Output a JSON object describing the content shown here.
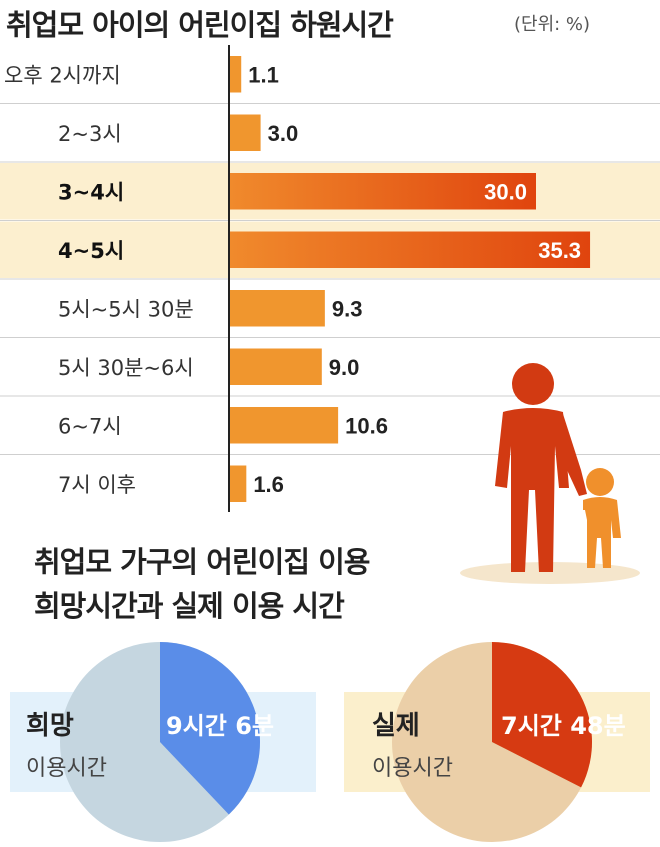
{
  "header": {
    "title": "취업모 아이의 어린이집 하원시간",
    "unit": "(단위: %)"
  },
  "chart_data": [
    {
      "type": "bar",
      "orientation": "horizontal",
      "title": "취업모 아이의 어린이집 하원시간",
      "unit": "(단위: %)",
      "categories": [
        "오후 2시까지",
        "2~3시",
        "3~4시",
        "4~5시",
        "5시~5시 30분",
        "5시 30분~6시",
        "6~7시",
        "7시 이후"
      ],
      "values": [
        1.1,
        3.0,
        30.0,
        35.3,
        9.3,
        9.0,
        10.6,
        1.6
      ],
      "value_labels": [
        "1.1",
        "3.0",
        "30.0",
        "35.3",
        "9.3",
        "9.0",
        "10.6",
        "1.6"
      ],
      "highlighted": [
        false,
        false,
        true,
        true,
        false,
        false,
        false,
        false
      ],
      "xlim": [
        0,
        40
      ],
      "colors": {
        "bar": "#f0962e",
        "bar_highlight_end": "#e0440e",
        "highlight_row": "#fcefcf"
      }
    },
    {
      "type": "pie",
      "title": "취업모 가구의 어린이집 이용 희망시간과 실제 이용 시간",
      "name": "희망",
      "subtitle": "이용시간",
      "value_label": "9시간 6분",
      "hours": 9.1,
      "colors": {
        "slice": "#5a8de8",
        "rest": "#c5d6e0",
        "box": "#e3f1fb"
      }
    },
    {
      "type": "pie",
      "title": "취업모 가구의 어린이집 이용 희망시간과 실제 이용 시간",
      "name": "실제",
      "subtitle": "이용시간",
      "value_label": "7시간 48분",
      "hours": 7.8,
      "colors": {
        "slice": "#d63a12",
        "rest": "#ebcfa8",
        "box": "#fbefcc"
      }
    }
  ],
  "section2": {
    "title_line1": "취업모 가구의 어린이집 이용",
    "title_line2": "희망시간과 실제 이용 시간"
  },
  "icons": {
    "parent_child": "parent-child-icon"
  }
}
